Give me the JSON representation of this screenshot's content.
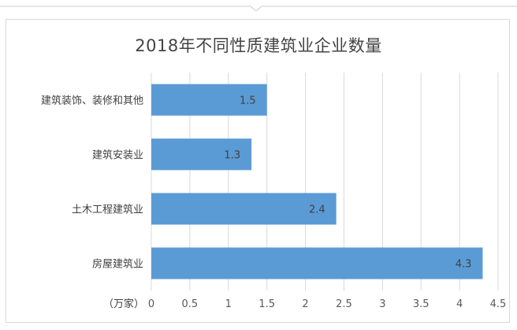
{
  "chart_data": {
    "type": "bar",
    "orientation": "horizontal",
    "title": "2018年不同性质建筑业企业数量",
    "unit_label": "（万家）",
    "categories": [
      "建筑装饰、装修和其他",
      "建筑安装业",
      "土木工程建筑业",
      "房屋建筑业"
    ],
    "values": [
      1.5,
      1.3,
      2.4,
      4.3
    ],
    "data_labels": [
      "1.5",
      "1.3",
      "2.4",
      "4.3"
    ],
    "xlim": [
      0,
      4.5
    ],
    "ticks": [
      0,
      0.5,
      1,
      1.5,
      2,
      2.5,
      3,
      3.5,
      4,
      4.5
    ],
    "tick_labels": [
      "0",
      "0.5",
      "1",
      "1.5",
      "2",
      "2.5",
      "3",
      "3.5",
      "4",
      "4.5"
    ],
    "grid": true,
    "bar_color": "#5b9bd5",
    "grid_color": "#d9d9d9"
  }
}
